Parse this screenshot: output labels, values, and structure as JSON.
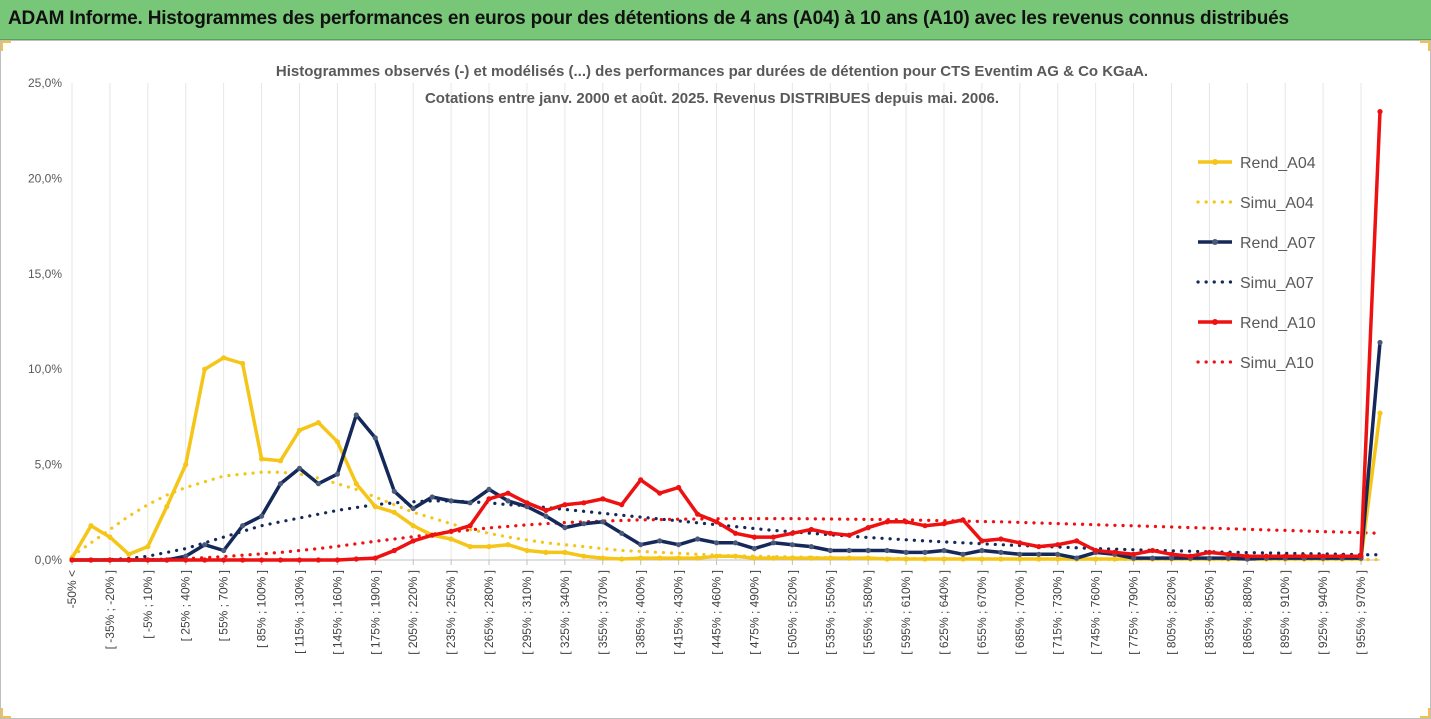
{
  "header": {
    "title": "ADAM Informe. Histogrammes des performances en euros pour des détentions de 4 ans (A04) à 10 ans (A10) avec les revenus connus distribués"
  },
  "chart_data": {
    "type": "line",
    "title_line1": "Histogrammes observés (-) et modélisés (...) des performances par durées de détention pour CTS Eventim AG & Co KGaA.",
    "title_line2": "Cotations entre janv. 2000 et août. 2025. Revenus DISTRIBUES depuis mai. 2006.",
    "ylim": [
      0,
      25
    ],
    "yticks": [
      "0,0%",
      "5,0%",
      "10,0%",
      "15,0%",
      "20,0%",
      "25,0%"
    ],
    "grid": "vertical",
    "legend_position": "right",
    "x_labels": [
      "-50% <",
      "[ -35% ; -20% ]",
      "[ -5% ; 10% ]",
      "[ 25% ; 40% ]",
      "[ 55% ; 70% ]",
      "[ 85% ; 100% ]",
      "[ 115% ; 130% ]",
      "[ 145% ; 160% ]",
      "[ 175% ; 190% ]",
      "[ 205% ; 220% ]",
      "[ 235% ; 250% ]",
      "[ 265% ; 280% ]",
      "[ 295% ; 310% ]",
      "[ 325% ; 340% ]",
      "[ 355% ; 370% ]",
      "[ 385% ; 400% ]",
      "[ 415% ; 430% ]",
      "[ 445% ; 460% ]",
      "[ 475% ; 490% ]",
      "[ 505% ; 520% ]",
      "[ 535% ; 550% ]",
      "[ 565% ; 580% ]",
      "[ 595% ; 610% ]",
      "[ 625% ; 640% ]",
      "[ 655% ; 670% ]",
      "[ 685% ; 700% ]",
      "[ 715% ; 730% ]",
      "[ 745% ; 760% ]",
      "[ 775% ; 790% ]",
      "[ 805% ; 820% ]",
      "[ 835% ; 850% ]",
      "[ 865% ; 880% ]",
      "[ 895% ; 910% ]",
      "[ 925% ; 940% ]",
      "[ 955% ; 970% ]"
    ],
    "series": [
      {
        "name": "Rend_A04",
        "color": "#f5c518",
        "style": "solid",
        "values": [
          0.1,
          1.8,
          1.2,
          0.3,
          0.7,
          2.8,
          5.0,
          10.0,
          10.6,
          10.3,
          5.3,
          5.2,
          6.8,
          7.2,
          6.2,
          4.0,
          2.8,
          2.5,
          1.8,
          1.3,
          1.1,
          0.7,
          0.7,
          0.8,
          0.5,
          0.4,
          0.4,
          0.2,
          0.1,
          0.05,
          0.1,
          0.1,
          0.1,
          0.1,
          0.2,
          0.2,
          0.1,
          0.1,
          0.1,
          0.1,
          0.1,
          0.1,
          0.1,
          0.05,
          0.05,
          0.05,
          0.05,
          0.05,
          0.05,
          0.05,
          0.05,
          0.05,
          0.05,
          0.05,
          0.05,
          0.05,
          0.05,
          0.05,
          0.05,
          0.05,
          0.05,
          0.05,
          0.05,
          0.05,
          0.05,
          0.05,
          0.05,
          0.05,
          0.05,
          7.7
        ]
      },
      {
        "name": "Simu_A04",
        "color": "#f5c518",
        "style": "dotted",
        "values": [
          0.2,
          0.9,
          1.6,
          2.3,
          2.9,
          3.4,
          3.8,
          4.1,
          4.4,
          4.5,
          4.6,
          4.6,
          4.5,
          4.3,
          4.0,
          3.7,
          3.3,
          2.9,
          2.5,
          2.2,
          1.9,
          1.6,
          1.4,
          1.2,
          1.05,
          0.9,
          0.8,
          0.7,
          0.6,
          0.5,
          0.45,
          0.4,
          0.35,
          0.3,
          0.25,
          0.22,
          0.2,
          0.18,
          0.16,
          0.14,
          0.12,
          0.1,
          0.1,
          0.09,
          0.08,
          0.07,
          0.06,
          0.06,
          0.05,
          0.05,
          0.05,
          0.04,
          0.04,
          0.04,
          0.04,
          0.03,
          0.03,
          0.03,
          0.03,
          0.03,
          0.02,
          0.02,
          0.02,
          0.02,
          0.02,
          0.02,
          0.02,
          0.02,
          0.02,
          0.02
        ]
      },
      {
        "name": "Rend_A07",
        "color": "#14285a",
        "style": "solid",
        "values": [
          0.0,
          0.0,
          0.0,
          0.0,
          0.0,
          0.0,
          0.2,
          0.8,
          0.5,
          1.8,
          2.3,
          4.0,
          4.8,
          4.0,
          4.5,
          7.6,
          6.4,
          3.6,
          2.7,
          3.3,
          3.1,
          3.0,
          3.7,
          3.1,
          2.8,
          2.3,
          1.7,
          1.9,
          2.0,
          1.4,
          0.8,
          1.0,
          0.8,
          1.1,
          0.9,
          0.9,
          0.6,
          0.9,
          0.8,
          0.7,
          0.5,
          0.5,
          0.5,
          0.5,
          0.4,
          0.4,
          0.5,
          0.3,
          0.5,
          0.4,
          0.3,
          0.3,
          0.3,
          0.1,
          0.4,
          0.3,
          0.1,
          0.1,
          0.1,
          0.1,
          0.1,
          0.1,
          0.05,
          0.1,
          0.1,
          0.1,
          0.1,
          0.1,
          0.1,
          11.4
        ]
      },
      {
        "name": "Simu_A07",
        "color": "#14285a",
        "style": "dotted",
        "values": [
          0.0,
          0.0,
          0.02,
          0.08,
          0.2,
          0.4,
          0.6,
          0.9,
          1.2,
          1.5,
          1.8,
          2.0,
          2.2,
          2.4,
          2.6,
          2.75,
          2.9,
          3.0,
          3.05,
          3.1,
          3.1,
          3.05,
          3.0,
          2.9,
          2.85,
          2.75,
          2.65,
          2.55,
          2.45,
          2.35,
          2.25,
          2.15,
          2.05,
          1.95,
          1.85,
          1.75,
          1.65,
          1.55,
          1.48,
          1.4,
          1.32,
          1.25,
          1.18,
          1.12,
          1.06,
          1.0,
          0.95,
          0.9,
          0.85,
          0.8,
          0.76,
          0.72,
          0.68,
          0.64,
          0.6,
          0.57,
          0.54,
          0.51,
          0.48,
          0.46,
          0.43,
          0.41,
          0.39,
          0.37,
          0.35,
          0.33,
          0.32,
          0.3,
          0.28,
          0.27
        ]
      },
      {
        "name": "Rend_A10",
        "color": "#ee1111",
        "style": "solid",
        "values": [
          0.0,
          0.0,
          0.0,
          0.0,
          0.0,
          0.0,
          0.0,
          0.0,
          0.0,
          0.0,
          0.0,
          0.0,
          0.0,
          0.0,
          0.0,
          0.05,
          0.1,
          0.5,
          1.0,
          1.3,
          1.5,
          1.8,
          3.2,
          3.5,
          3.0,
          2.6,
          2.9,
          3.0,
          3.2,
          2.9,
          4.2,
          3.5,
          3.8,
          2.4,
          2.0,
          1.4,
          1.2,
          1.2,
          1.4,
          1.6,
          1.4,
          1.3,
          1.7,
          2.0,
          2.0,
          1.8,
          1.9,
          2.1,
          1.0,
          1.1,
          0.9,
          0.7,
          0.8,
          1.0,
          0.5,
          0.4,
          0.3,
          0.5,
          0.3,
          0.2,
          0.4,
          0.3,
          0.2,
          0.2,
          0.2,
          0.2,
          0.2,
          0.2,
          0.2,
          23.5
        ]
      },
      {
        "name": "Simu_A10",
        "color": "#ee1111",
        "style": "dotted",
        "values": [
          0.0,
          0.0,
          0.0,
          0.0,
          0.02,
          0.05,
          0.08,
          0.12,
          0.18,
          0.25,
          0.32,
          0.4,
          0.5,
          0.6,
          0.72,
          0.85,
          0.98,
          1.1,
          1.22,
          1.35,
          1.48,
          1.58,
          1.68,
          1.76,
          1.84,
          1.9,
          1.96,
          2.0,
          2.04,
          2.07,
          2.1,
          2.12,
          2.14,
          2.15,
          2.16,
          2.17,
          2.17,
          2.17,
          2.17,
          2.16,
          2.15,
          2.14,
          2.13,
          2.12,
          2.1,
          2.08,
          2.06,
          2.04,
          2.02,
          2.0,
          1.97,
          1.94,
          1.91,
          1.88,
          1.85,
          1.82,
          1.79,
          1.76,
          1.73,
          1.7,
          1.67,
          1.64,
          1.61,
          1.58,
          1.55,
          1.52,
          1.49,
          1.46,
          1.43,
          1.4
        ]
      }
    ]
  }
}
